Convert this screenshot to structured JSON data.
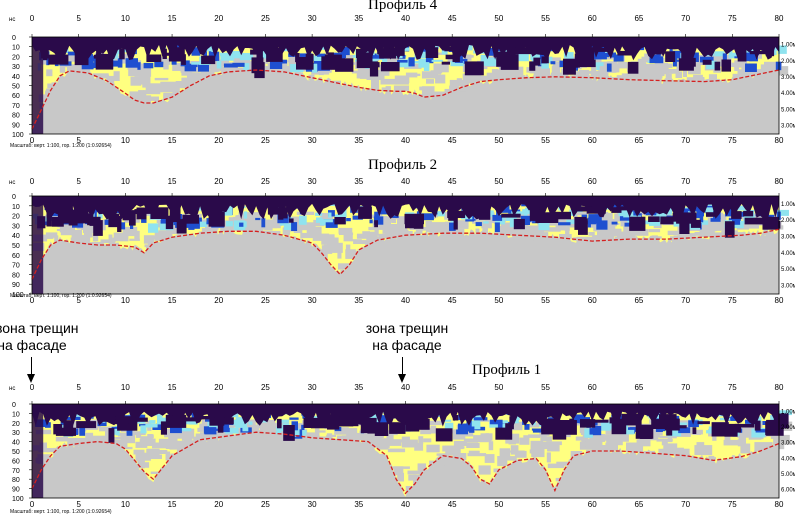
{
  "chart_data": [
    {
      "type": "heatmap",
      "title": "Профиль 4",
      "x_ticks": [
        0,
        5,
        10,
        15,
        20,
        25,
        30,
        35,
        40,
        45,
        50,
        55,
        60,
        65,
        70,
        75,
        80
      ],
      "y_unit": "нс",
      "y_ticks": [
        0,
        10,
        20,
        30,
        40,
        50,
        60,
        70,
        80,
        90,
        100
      ],
      "depth_labels": [
        "1.00м",
        "2.00м",
        "3.00м",
        "4.00м",
        "5.00м",
        "3.00м"
      ],
      "scale_note": "Масштаб: верт. 1:100, гор. 1:200 (1:0.92654)",
      "xlim": [
        0,
        80
      ],
      "ylim": [
        0,
        100
      ],
      "boundary": {
        "x": [
          0,
          1,
          2,
          3,
          4,
          6,
          8,
          10,
          11,
          12,
          13,
          15,
          17,
          19,
          21,
          24,
          27,
          30,
          33,
          35,
          37,
          39,
          40,
          41,
          42,
          44,
          46,
          48,
          50,
          53,
          56,
          60,
          64,
          68,
          72,
          75,
          78,
          80
        ],
        "y": [
          95,
          75,
          55,
          40,
          35,
          37,
          45,
          58,
          65,
          68,
          68,
          62,
          50,
          40,
          36,
          34,
          36,
          42,
          48,
          52,
          55,
          56,
          56,
          58,
          62,
          60,
          52,
          46,
          44,
          42,
          41,
          42,
          44,
          45,
          46,
          44,
          38,
          34
        ]
      }
    },
    {
      "type": "heatmap",
      "title": "Профиль 2",
      "x_ticks": [
        0,
        5,
        10,
        15,
        20,
        25,
        30,
        35,
        40,
        45,
        50,
        55,
        60,
        65,
        70,
        75,
        80
      ],
      "y_unit": "нс",
      "y_ticks": [
        0,
        10,
        20,
        30,
        40,
        50,
        60,
        70,
        80,
        90,
        100
      ],
      "depth_labels": [
        "1.00м",
        "2.00м",
        "3.00м",
        "4.00м",
        "5.00м",
        "3.00м"
      ],
      "scale_note": "Масштаб: верт. 1:100, гор. 1:200 (1:0.92654)",
      "xlim": [
        0,
        80
      ],
      "ylim": [
        0,
        100
      ],
      "boundary": {
        "x": [
          0,
          1,
          2,
          3,
          5,
          7,
          9,
          11,
          12,
          13,
          15,
          18,
          21,
          24,
          27,
          30,
          31,
          32,
          33,
          34,
          35,
          37,
          40,
          44,
          48,
          52,
          56,
          60,
          64,
          68,
          72,
          76,
          78,
          80
        ],
        "y": [
          85,
          65,
          50,
          45,
          48,
          50,
          50,
          52,
          58,
          48,
          42,
          38,
          36,
          36,
          40,
          48,
          58,
          70,
          80,
          70,
          55,
          45,
          40,
          38,
          38,
          40,
          42,
          46,
          44,
          44,
          42,
          40,
          38,
          34
        ]
      }
    },
    {
      "type": "heatmap",
      "title": "Профиль 1",
      "x_ticks": [
        0,
        5,
        10,
        15,
        20,
        25,
        30,
        35,
        40,
        45,
        50,
        55,
        60,
        65,
        70,
        75,
        80
      ],
      "y_unit": "нс",
      "y_ticks": [
        0,
        10,
        20,
        30,
        40,
        50,
        60,
        70,
        80,
        90,
        100
      ],
      "depth_labels": [
        "1.00м",
        "2.00м",
        "3.00м",
        "4.00м",
        "5.00м",
        "6.00м"
      ],
      "scale_note": "Масштаб: верт. 1:100, гор. 1:200 (1:0.92654)",
      "xlim": [
        0,
        80
      ],
      "ylim": [
        0,
        100
      ],
      "boundary": {
        "x": [
          0,
          1,
          2,
          3,
          5,
          7,
          9,
          10,
          11,
          12,
          13,
          15,
          18,
          21,
          24,
          27,
          30,
          33,
          36,
          38,
          39,
          40,
          41,
          42,
          44,
          46,
          47,
          48,
          49,
          50,
          52,
          54,
          55,
          56,
          57,
          58,
          60,
          63,
          66,
          70,
          73,
          76,
          78,
          80
        ],
        "y": [
          90,
          70,
          55,
          45,
          42,
          40,
          42,
          48,
          60,
          72,
          80,
          55,
          38,
          34,
          30,
          32,
          36,
          38,
          40,
          55,
          80,
          95,
          85,
          70,
          55,
          58,
          66,
          80,
          85,
          70,
          60,
          58,
          70,
          92,
          70,
          55,
          50,
          50,
          52,
          55,
          60,
          56,
          50,
          42
        ]
      }
    }
  ],
  "annotations": [
    {
      "text1": "зона трещин",
      "text2": "на фасаде"
    },
    {
      "text1": "зона трещин",
      "text2": "на фасаде"
    }
  ],
  "colors": {
    "strong": "#2a0a4a",
    "blue": "#1e4fd0",
    "cyan": "#8fe3ef",
    "yellow": "#ffff80",
    "gray": "#c8c8c8",
    "boundary": "#d42020"
  }
}
